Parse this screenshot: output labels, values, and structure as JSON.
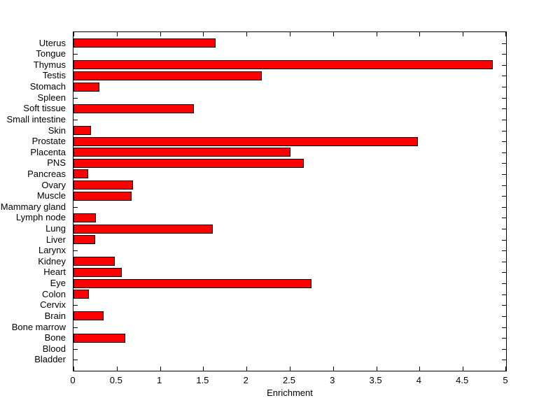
{
  "chart_data": {
    "type": "bar",
    "orientation": "horizontal",
    "xlabel": "Enrichment",
    "xlim": [
      0,
      5
    ],
    "xticks": [
      0,
      0.5,
      1,
      1.5,
      2,
      2.5,
      3,
      3.5,
      4,
      4.5,
      5
    ],
    "xtick_labels": [
      "0",
      "0.5",
      "1",
      "1.5",
      "2",
      "2.5",
      "3",
      "3.5",
      "4",
      "4.5",
      "5"
    ],
    "categories": [
      "Uterus",
      "Tongue",
      "Thymus",
      "Testis",
      "Stomach",
      "Spleen",
      "Soft tissue",
      "Small intestine",
      "Skin",
      "Prostate",
      "Placenta",
      "PNS",
      "Pancreas",
      "Ovary",
      "Muscle",
      "Mammary gland",
      "Lymph node",
      "Lung",
      "Liver",
      "Larynx",
      "Kidney",
      "Heart",
      "Eye",
      "Colon",
      "Cervix",
      "Brain",
      "Bone marrow",
      "Bone",
      "Blood",
      "Bladder"
    ],
    "values": [
      1.64,
      0,
      4.85,
      2.18,
      0.3,
      0,
      1.39,
      0,
      0.2,
      3.98,
      2.51,
      2.66,
      0.17,
      0.69,
      0.67,
      0,
      0.26,
      1.61,
      0.25,
      0,
      0.48,
      0.56,
      2.75,
      0.18,
      0,
      0.35,
      0,
      0.6,
      0,
      0
    ],
    "bar_color": "#ff0000",
    "bar_edge_color": "#000000",
    "axis_color": "#000000",
    "background_color": "#ffffff",
    "grid": false,
    "legend": null
  }
}
